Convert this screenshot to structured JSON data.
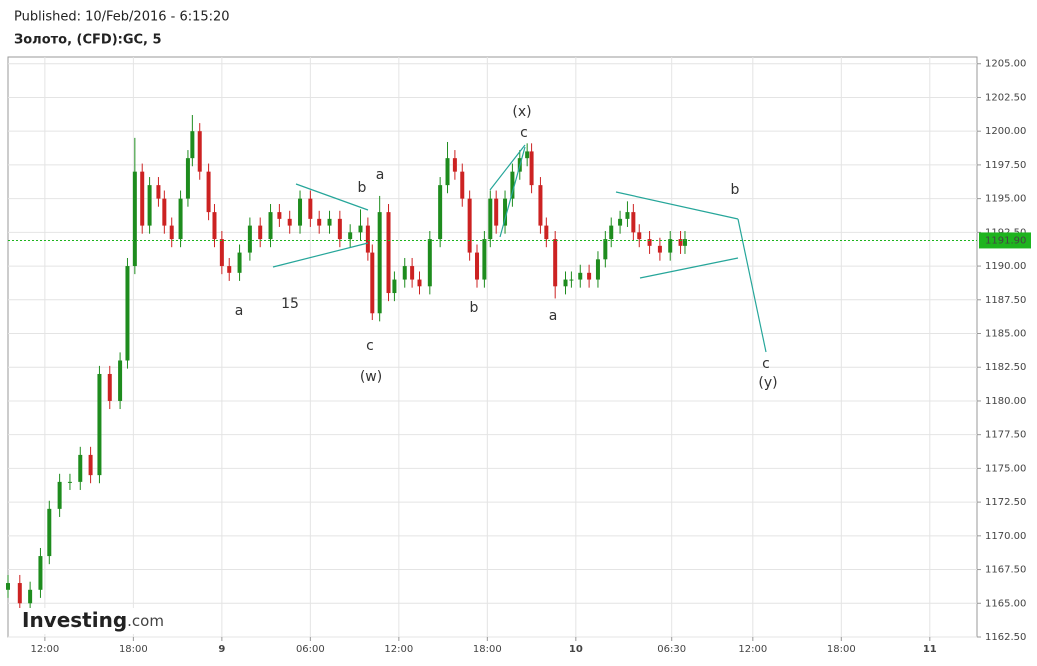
{
  "header": {
    "published": "Published: 10/Feb/2016 - 6:15:20",
    "instrument": "Золото, (CFD):GC, 5"
  },
  "logo": {
    "brand": "Investing",
    "suffix": ".com"
  },
  "chart_data": {
    "type": "candlestick",
    "up_color": "#1e8c1e",
    "down_color": "#cc2222",
    "grid": true,
    "xlim": [
      9.5,
      75.2
    ],
    "ylim": [
      1162.5,
      1205.5
    ],
    "xticks": [
      {
        "value": 12,
        "label": "12:00"
      },
      {
        "value": 18,
        "label": "18:00"
      },
      {
        "value": 24,
        "label": "9"
      },
      {
        "value": 30,
        "label": "06:00"
      },
      {
        "value": 36,
        "label": "12:00"
      },
      {
        "value": 42,
        "label": "18:00"
      },
      {
        "value": 48,
        "label": "10"
      },
      {
        "value": 54.5,
        "label": "06:30"
      },
      {
        "value": 60,
        "label": "12:00"
      },
      {
        "value": 66,
        "label": "18:00"
      },
      {
        "value": 72,
        "label": "11"
      }
    ],
    "yticks": [
      {
        "value": 1162.5,
        "label": "1162.50"
      },
      {
        "value": 1165,
        "label": "1165.00"
      },
      {
        "value": 1167.5,
        "label": "1167.50"
      },
      {
        "value": 1170,
        "label": "1170.00"
      },
      {
        "value": 1172.5,
        "label": "1172.50"
      },
      {
        "value": 1175,
        "label": "1175.00"
      },
      {
        "value": 1177.5,
        "label": "1177.50"
      },
      {
        "value": 1180,
        "label": "1180.00"
      },
      {
        "value": 1182.5,
        "label": "1182.50"
      },
      {
        "value": 1185,
        "label": "1185.00"
      },
      {
        "value": 1187.5,
        "label": "1187.50"
      },
      {
        "value": 1190,
        "label": "1190.00"
      },
      {
        "value": 1192.5,
        "label": "1192.50"
      },
      {
        "value": 1195,
        "label": "1195.00"
      },
      {
        "value": 1197.5,
        "label": "1197.50"
      },
      {
        "value": 1200,
        "label": "1200.00"
      },
      {
        "value": 1202.5,
        "label": "1202.50"
      },
      {
        "value": 1205,
        "label": "1205.00"
      }
    ],
    "last_price": {
      "value": 1191.9,
      "label": "1191.90",
      "color": "#1eb41e"
    },
    "x": [
      9.5,
      10.3,
      11.0,
      11.7,
      12.3,
      13.0,
      13.7,
      14.4,
      15.1,
      15.7,
      16.4,
      17.1,
      17.6,
      18.1,
      18.6,
      19.1,
      19.7,
      20.1,
      20.6,
      21.2,
      21.7,
      22.0,
      22.5,
      23.1,
      23.5,
      24.0,
      24.5,
      25.2,
      25.9,
      26.6,
      27.3,
      27.9,
      28.6,
      29.3,
      30.0,
      30.6,
      31.3,
      32.0,
      32.7,
      33.4,
      33.9,
      34.2,
      34.7,
      35.3,
      35.7,
      36.4,
      36.9,
      37.4,
      38.1,
      38.8,
      39.3,
      39.8,
      40.3,
      40.8,
      41.3,
      41.8,
      42.2,
      42.6,
      43.2,
      43.7,
      44.2,
      44.7,
      45.0,
      45.6,
      46.0,
      46.6,
      47.3,
      47.7,
      48.3,
      48.9,
      49.5,
      50.0,
      50.4,
      51.0,
      51.5,
      51.9,
      52.3,
      53.0,
      53.7,
      54.4,
      55.1,
      55.4
    ],
    "open": [
      1166,
      1166.5,
      1165,
      1166,
      1168.5,
      1172,
      1174,
      1174,
      1176,
      1174.5,
      1182,
      1180,
      1183,
      1190,
      1197,
      1193,
      1196,
      1195,
      1193,
      1192,
      1195,
      1198,
      1200,
      1197,
      1194,
      1192,
      1190,
      1189.5,
      1191,
      1193,
      1192,
      1194,
      1193.5,
      1193,
      1195,
      1193.5,
      1193,
      1193.5,
      1192,
      1192.5,
      1193,
      1191,
      1186.5,
      1194,
      1188,
      1189,
      1190,
      1189,
      1188.5,
      1192,
      1196,
      1198,
      1197,
      1195,
      1191,
      1189,
      1192,
      1195,
      1193,
      1195,
      1197,
      1198,
      1198.5,
      1196,
      1193,
      1192,
      1188.5,
      1189,
      1189,
      1189.5,
      1189,
      1190.5,
      1192,
      1193,
      1193.5,
      1194,
      1192.5,
      1192,
      1191.5,
      1191,
      1192,
      1191.5
    ],
    "high": [
      1167.1,
      1167.1,
      1166.6,
      1169.1,
      1172.6,
      1174.6,
      1174.6,
      1176.6,
      1176.6,
      1182.6,
      1182.6,
      1183.6,
      1190.6,
      1199.5,
      1197.6,
      1196.6,
      1196.6,
      1195.6,
      1193.6,
      1195.6,
      1198.6,
      1201.2,
      1200.6,
      1197.6,
      1194.6,
      1192.6,
      1190.6,
      1191.6,
      1193.6,
      1193.6,
      1194.6,
      1194.6,
      1194.1,
      1195.6,
      1195.6,
      1194.1,
      1194.1,
      1194.1,
      1193.1,
      1194.2,
      1193.6,
      1191.6,
      1195.2,
      1194.6,
      1189.6,
      1190.6,
      1190.6,
      1189.6,
      1192.6,
      1196.6,
      1199.2,
      1198.6,
      1197.6,
      1195.6,
      1191.6,
      1192.6,
      1195.6,
      1195.6,
      1195.6,
      1197.6,
      1198.6,
      1199.1,
      1199.1,
      1196.6,
      1193.6,
      1192.6,
      1189.6,
      1189.6,
      1190.1,
      1190.1,
      1191.1,
      1192.6,
      1193.6,
      1194.1,
      1194.8,
      1194.6,
      1193.1,
      1192.6,
      1192.1,
      1192.6,
      1192.6,
      1192.6
    ],
    "low": [
      1165.4,
      1164.4,
      1164.4,
      1165.4,
      1167.9,
      1171.4,
      1173.4,
      1173.4,
      1173.9,
      1173.9,
      1179.4,
      1179.4,
      1182.4,
      1189.4,
      1192.4,
      1192.4,
      1194.4,
      1192.4,
      1191.4,
      1191.4,
      1194.4,
      1197.4,
      1196.4,
      1193.4,
      1191.4,
      1189.4,
      1188.9,
      1188.9,
      1190.4,
      1191.4,
      1191.4,
      1192.9,
      1192.4,
      1192.4,
      1192.9,
      1192.4,
      1192.4,
      1191.4,
      1191.4,
      1191.9,
      1190.4,
      1186.0,
      1185.9,
      1187.4,
      1187.4,
      1188.4,
      1188.4,
      1187.9,
      1187.9,
      1191.4,
      1195.4,
      1196.4,
      1194.4,
      1190.4,
      1188.4,
      1188.4,
      1191.4,
      1192.4,
      1192.4,
      1194.4,
      1196.4,
      1197.4,
      1195.4,
      1192.4,
      1191.4,
      1187.6,
      1187.9,
      1188.4,
      1188.4,
      1188.4,
      1188.4,
      1189.9,
      1191.4,
      1192.4,
      1192.9,
      1191.9,
      1191.4,
      1190.9,
      1190.4,
      1190.4,
      1190.9,
      1190.9
    ],
    "close": [
      1166.5,
      1165,
      1166,
      1168.5,
      1172,
      1174,
      1174,
      1176,
      1174.5,
      1182,
      1180,
      1183,
      1190,
      1197,
      1193,
      1196,
      1195,
      1193,
      1192,
      1195,
      1198,
      1200,
      1197,
      1194,
      1192,
      1190,
      1189.5,
      1191,
      1193,
      1192,
      1194,
      1193.5,
      1193,
      1195,
      1193.5,
      1193,
      1193.5,
      1192,
      1192.5,
      1193,
      1191,
      1186.5,
      1194,
      1188,
      1189,
      1190,
      1189,
      1188.5,
      1192,
      1196,
      1198,
      1197,
      1195,
      1191,
      1189,
      1192,
      1195,
      1193,
      1195,
      1197,
      1198,
      1198.5,
      1196,
      1193,
      1192,
      1188.5,
      1189,
      1189,
      1189.5,
      1189,
      1190.5,
      1192,
      1193,
      1193.5,
      1194,
      1192.5,
      1192,
      1191.5,
      1191,
      1192,
      1191.5,
      1192
    ],
    "annotations": [
      "a",
      "15",
      "b",
      "a",
      "c",
      "(w)",
      "b",
      "(x)",
      "c",
      "a",
      "b",
      "c",
      "(y)"
    ]
  }
}
